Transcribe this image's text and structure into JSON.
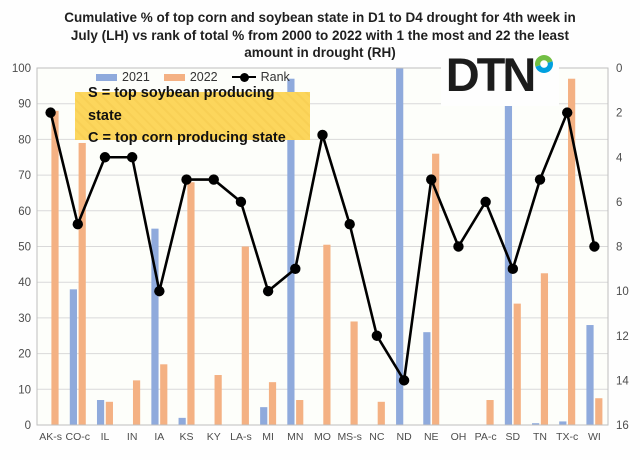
{
  "title": {
    "lines": [
      "Cumulative % of top corn and soybean state in D1 to D4 drought for 4th week in",
      "July (LH) vs rank of total % from 2000 to 2022 with 1 the most and 22 the least",
      "amount in drought (RH)"
    ]
  },
  "legend": {
    "items": [
      {
        "label": "2021",
        "color": "#8FAADC"
      },
      {
        "label": "2022",
        "color": "#F4B183"
      },
      {
        "label": "Rank",
        "color": "#000000"
      }
    ]
  },
  "annotation": {
    "lines": [
      "S = top soybean producing state",
      "C = top corn producing state"
    ],
    "background": "#FCD65C"
  },
  "logo": {
    "text": "DTN",
    "ring_green": "#72BF44",
    "ring_blue": "#00A0DF"
  },
  "chart_data": {
    "type": "bar",
    "subtype": "grouped bars with line on secondary inverted axis",
    "title": "Cumulative % of top corn and soybean state in D1 to D4 drought for 4th week in July (LH) vs rank of total % from 2000 to 2022 with 1 the most and 22 the least amount in drought (RH)",
    "categories": [
      "AK-s",
      "CO-c",
      "IL",
      "IN",
      "IA",
      "KS",
      "KY",
      "LA-s",
      "MI",
      "MN",
      "MO",
      "MS-s",
      "NC",
      "ND",
      "NE",
      "OH",
      "PA-c",
      "SD",
      "TN",
      "TX-c",
      "WI"
    ],
    "series": [
      {
        "name": "2021",
        "type": "bar",
        "axis": "left",
        "color": "#8FAADC",
        "values": [
          0,
          38,
          7,
          0,
          55,
          2,
          0,
          0,
          5,
          97,
          0,
          0,
          0,
          100,
          26,
          0,
          0,
          90,
          0.5,
          1,
          28
        ]
      },
      {
        "name": "2022",
        "type": "bar",
        "axis": "left",
        "color": "#F4B183",
        "values": [
          88,
          79,
          6.5,
          12.5,
          17,
          68,
          14,
          50,
          12,
          7,
          50.5,
          29,
          6.5,
          0,
          76,
          0,
          7,
          34,
          42.5,
          97,
          7.5
        ]
      },
      {
        "name": "Rank",
        "type": "line",
        "axis": "right",
        "color": "#000000",
        "values": [
          2,
          7,
          4,
          4,
          10,
          5,
          5,
          6,
          10,
          9,
          3,
          7,
          12,
          14,
          5,
          8,
          6,
          9,
          5,
          2,
          8
        ]
      }
    ],
    "left_axis": {
      "min": 0,
      "max": 100,
      "tick_step": 10
    },
    "right_axis": {
      "min": 0,
      "max": 16,
      "tick_step": 2,
      "inverted": true
    },
    "grid": "horizontal",
    "gridline_color": "#D9D9D9",
    "frame_color": "#BFBFBF",
    "axis_text_color": "#4d4d4d",
    "legend_position": "top-inside-left"
  }
}
